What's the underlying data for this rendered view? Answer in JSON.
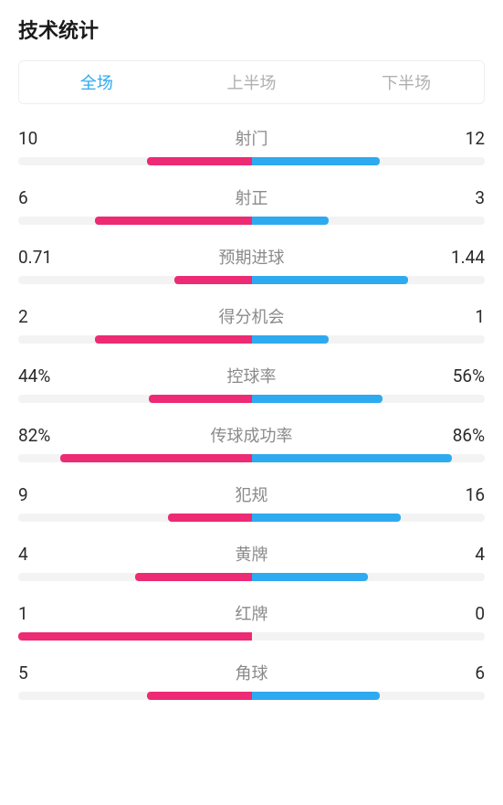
{
  "title": "技术统计",
  "tabs": [
    {
      "label": "全场",
      "active": true
    },
    {
      "label": "上半场",
      "active": false
    },
    {
      "label": "下半场",
      "active": false
    }
  ],
  "colors": {
    "left": "#ed2a74",
    "right": "#2eaaf0",
    "track": "#f3f3f3",
    "tab_active": "#2eaaf0",
    "tab_inactive": "#b0b0b0",
    "stat_name": "#8a8a8a",
    "stat_value": "#2a2a2a",
    "title": "#1a1a1a"
  },
  "stats": [
    {
      "name": "射门",
      "left_label": "10",
      "right_label": "12",
      "left_pct": 45,
      "right_pct": 55
    },
    {
      "name": "射正",
      "left_label": "6",
      "right_label": "3",
      "left_pct": 67,
      "right_pct": 33
    },
    {
      "name": "预期进球",
      "left_label": "0.71",
      "right_label": "1.44",
      "left_pct": 33,
      "right_pct": 67
    },
    {
      "name": "得分机会",
      "left_label": "2",
      "right_label": "1",
      "left_pct": 67,
      "right_pct": 33
    },
    {
      "name": "控球率",
      "left_label": "44%",
      "right_label": "56%",
      "left_pct": 44,
      "right_pct": 56
    },
    {
      "name": "传球成功率",
      "left_label": "82%",
      "right_label": "86%",
      "left_pct": 82,
      "right_pct": 86
    },
    {
      "name": "犯规",
      "left_label": "9",
      "right_label": "16",
      "left_pct": 36,
      "right_pct": 64
    },
    {
      "name": "黄牌",
      "left_label": "4",
      "right_label": "4",
      "left_pct": 50,
      "right_pct": 50
    },
    {
      "name": "红牌",
      "left_label": "1",
      "right_label": "0",
      "left_pct": 100,
      "right_pct": 0
    },
    {
      "name": "角球",
      "left_label": "5",
      "right_label": "6",
      "left_pct": 45,
      "right_pct": 55
    }
  ]
}
